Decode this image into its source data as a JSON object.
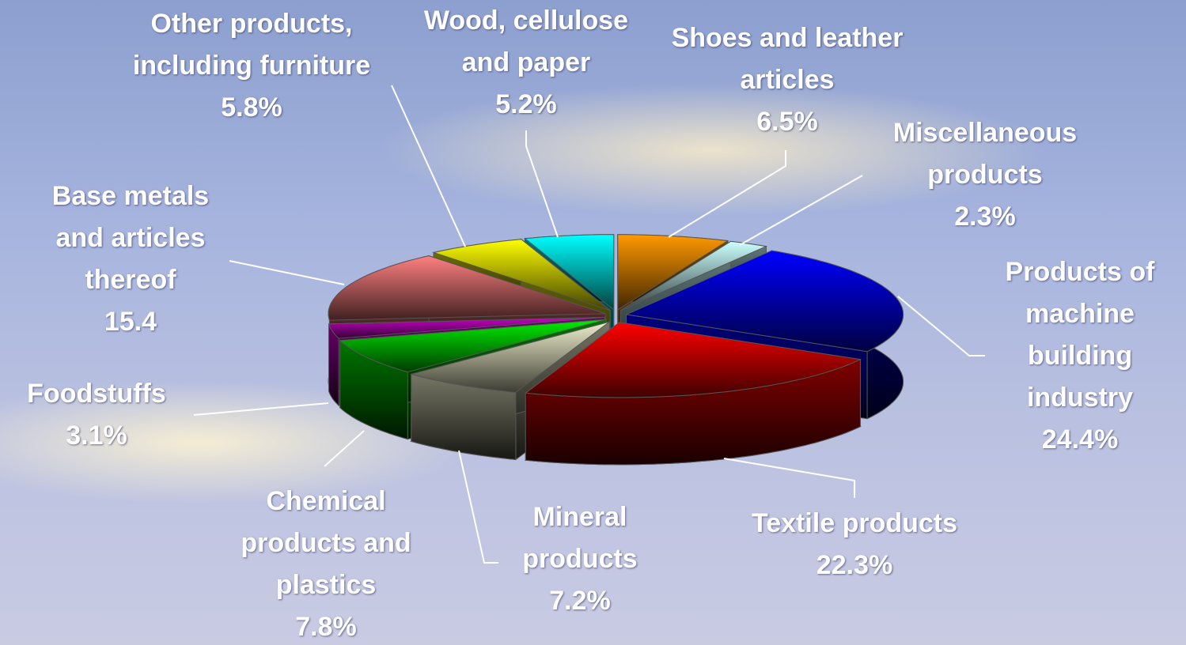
{
  "chart_data": {
    "type": "pie",
    "categories": [
      "Shoes and leather articles",
      "Miscellaneous products",
      "Products of machine building industry",
      "Textile products",
      "Mineral products",
      "Chemical products and plastics",
      "Foodstuffs",
      "Base metals and articles thereof",
      "Other products, including furniture",
      "Wood, cellulose and paper"
    ],
    "values": [
      6.5,
      2.3,
      24.4,
      22.3,
      7.2,
      7.8,
      3.1,
      15.4,
      5.8,
      5.2
    ],
    "value_labels": [
      "6.5%",
      "2.3%",
      "24.4%",
      "22.3%",
      "7.2%",
      "7.8%",
      "3.1%",
      "15.4",
      "5.8%",
      "5.2%"
    ],
    "colors": [
      "#ff9900",
      "#ccffff",
      "#0000ff",
      "#ff0000",
      "#eeeecc",
      "#00ee00",
      "#cc00cc",
      "#ff8080",
      "#ffff00",
      "#00ffff"
    ]
  }
}
